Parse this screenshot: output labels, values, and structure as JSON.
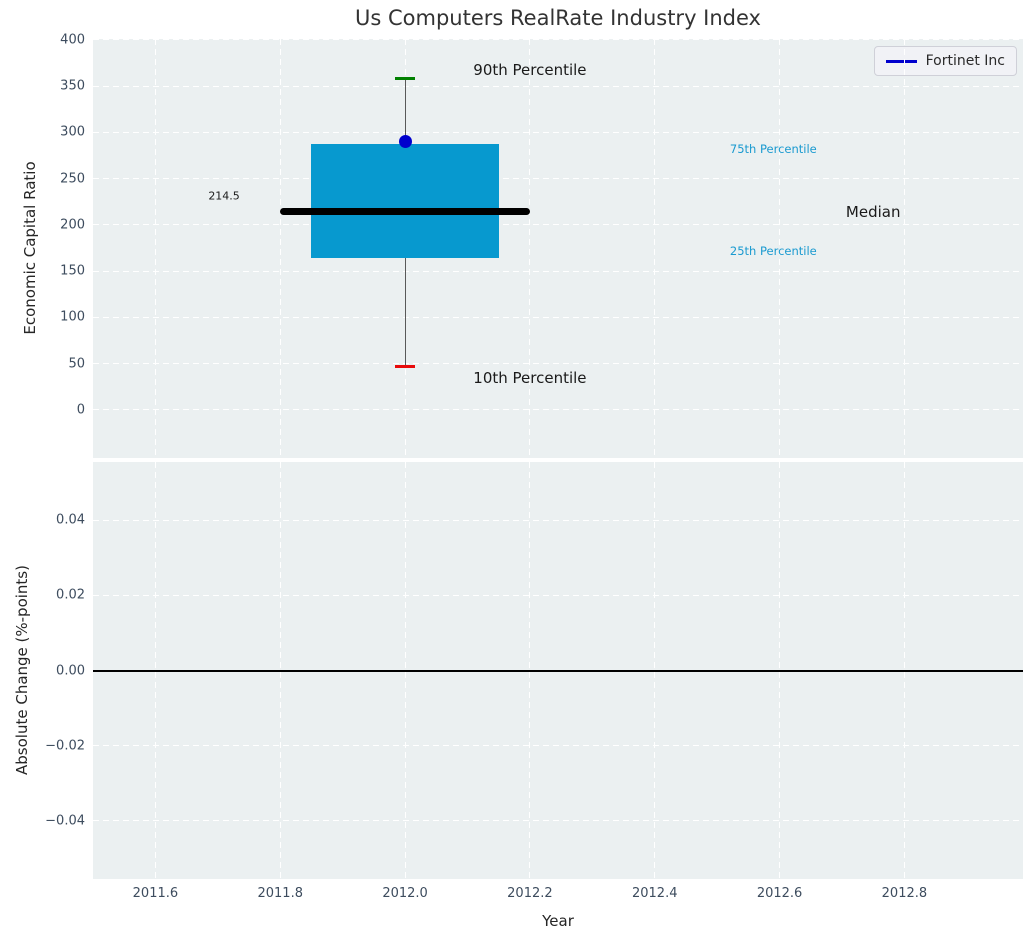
{
  "title": "Us Computers RealRate Industry Index",
  "legend": {
    "entries": [
      {
        "label": "Fortinet Inc",
        "line_color": "#0000cd"
      }
    ]
  },
  "colors": {
    "figure_bg": "#ffffff",
    "axes_bg": "#ebf0f1",
    "grid": "#ffffff",
    "tick_label": "#3d4c5e",
    "axis_label": "#262626",
    "title": "#333333",
    "box_fill": "#0799cf",
    "median_line": "#000000",
    "whisker": "#595959",
    "cap_90th": "#008000",
    "cap_10th": "#e80b0b",
    "company_point": "#0000cd",
    "annotation_cyan": "#1a9ad0",
    "annotation_dark": "#1a1a1a",
    "zero_line": "#000000"
  },
  "x_axis": {
    "label": "Year",
    "tick_values": [
      2011.6,
      2011.8,
      2012.0,
      2012.2,
      2012.4,
      2012.6,
      2012.8
    ],
    "tick_labels": [
      "2011.6",
      "2011.8",
      "2012.0",
      "2012.2",
      "2012.4",
      "2012.6",
      "2012.8"
    ],
    "xlim": [
      2011.5,
      2012.99
    ]
  },
  "chart_data": [
    {
      "type": "box",
      "title": "Us Computers RealRate Industry Index",
      "ylabel": "Economic Capital Ratio",
      "xlabel": "",
      "grid": "on",
      "legend_position": "upper right",
      "series_label": "Fortinet Inc",
      "x_center": 2012.0,
      "box": {
        "p10": 47,
        "p25": 164,
        "median": 214.5,
        "p75": 288,
        "p90": 358
      },
      "box_x_range": [
        2011.85,
        2012.15
      ],
      "median_x_range": [
        2011.8,
        2012.2
      ],
      "cap_half_width_years": 0.016,
      "company_point": {
        "label": "Fortinet Inc",
        "x": 2012.0,
        "y": 290
      },
      "ylim": [
        -52,
        401
      ],
      "ytick_values": [
        0,
        50,
        100,
        150,
        200,
        250,
        300,
        350,
        400
      ],
      "ytick_labels": [
        "0",
        "50",
        "100",
        "150",
        "200",
        "250",
        "300",
        "350",
        "400"
      ],
      "annotations": [
        {
          "text": "90th Percentile",
          "x": 2012.2,
          "y": 367,
          "color": "dark",
          "size": 15
        },
        {
          "text": "75th Percentile",
          "x": 2012.59,
          "y": 282,
          "color": "cyan",
          "size": 11.5
        },
        {
          "text": "Median",
          "x": 2012.75,
          "y": 214,
          "color": "dark",
          "size": 15
        },
        {
          "text": "25th Percentile",
          "x": 2012.59,
          "y": 172,
          "color": "cyan",
          "size": 11.5
        },
        {
          "text": "10th Percentile",
          "x": 2012.2,
          "y": 35,
          "color": "dark",
          "size": 15
        },
        {
          "text": "214.5",
          "x": 2011.71,
          "y": 231,
          "color": "dark",
          "size": 11
        }
      ]
    },
    {
      "type": "line",
      "ylabel": "Absolute Change (%-points)",
      "xlabel": "Year",
      "grid": "on",
      "ylim": [
        -0.0555,
        0.0555
      ],
      "ytick_values": [
        0.04,
        0.02,
        0,
        -0.02,
        -0.04
      ],
      "ytick_labels": [
        "0.04",
        "0.02",
        "0.00",
        "−0.02",
        "−0.04"
      ],
      "zero_line_y": 0,
      "series": []
    }
  ]
}
